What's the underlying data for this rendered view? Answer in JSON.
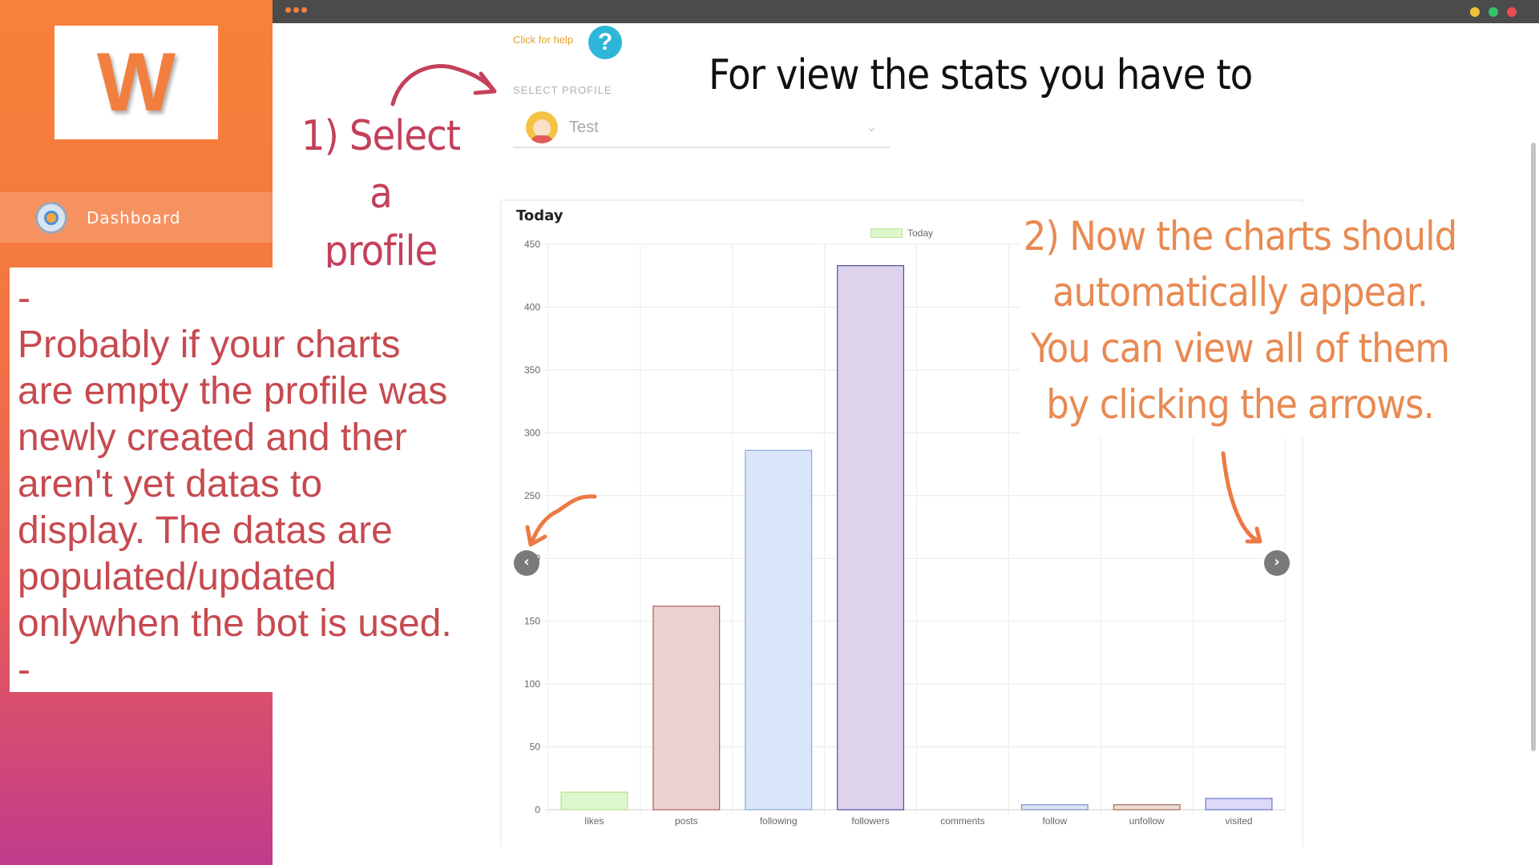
{
  "logo": {
    "letter": "W"
  },
  "sidebar": {
    "items": [
      {
        "label": "Dashboard",
        "icon": "dashboard-icon"
      }
    ]
  },
  "help": {
    "text": "Click for help",
    "icon": "?"
  },
  "profile": {
    "label": "SELECT PROFILE",
    "selected": "Test"
  },
  "annotations": {
    "title": "For view the stats you have to",
    "step1": [
      "1) Select a",
      "profile"
    ],
    "step2": [
      "2) Now the charts should",
      "automatically appear.",
      "You can view all of them",
      "by clicking the arrows."
    ],
    "note": [
      "-",
      "Probably if your charts",
      "are empty the profile was",
      "newly created and ther",
      "aren't yet datas to",
      "display. The datas are",
      "populated/updated",
      "onlywhen the bot is used.",
      "-"
    ]
  },
  "colors": {
    "accent": "#f27f40",
    "help": "#2eb6d8",
    "note_text": "#c64a50",
    "step1_text": "#c4405a",
    "step2_text": "#e88a52"
  },
  "chart_data": {
    "type": "bar",
    "title": "Today",
    "legend": [
      "Today"
    ],
    "categories": [
      "likes",
      "posts",
      "following",
      "followers",
      "comments",
      "follow",
      "unfollow",
      "visited"
    ],
    "series": [
      {
        "name": "Today",
        "values": [
          14,
          162,
          286,
          433,
          0,
          4,
          4,
          9
        ]
      }
    ],
    "ylim": [
      0,
      450
    ],
    "yticks": [
      0,
      50,
      100,
      150,
      200,
      250,
      300,
      350,
      400,
      450
    ],
    "bar_fill": [
      "#dff7cc",
      "#ecd1d1",
      "#d9e5fb",
      "#ddd3ec",
      "#eeeeee",
      "#d9e3f5",
      "#ecdcd3",
      "#dcdaf8"
    ],
    "bar_stroke": [
      "#b2e394",
      "#b35a5a",
      "#8ba8d7",
      "#4d4ea0",
      "#cccccc",
      "#7b96c5",
      "#a06d5b",
      "#6b74d4"
    ],
    "grid": true,
    "legend_position": "top"
  },
  "carousel": {
    "prev": "‹",
    "next": "›"
  }
}
